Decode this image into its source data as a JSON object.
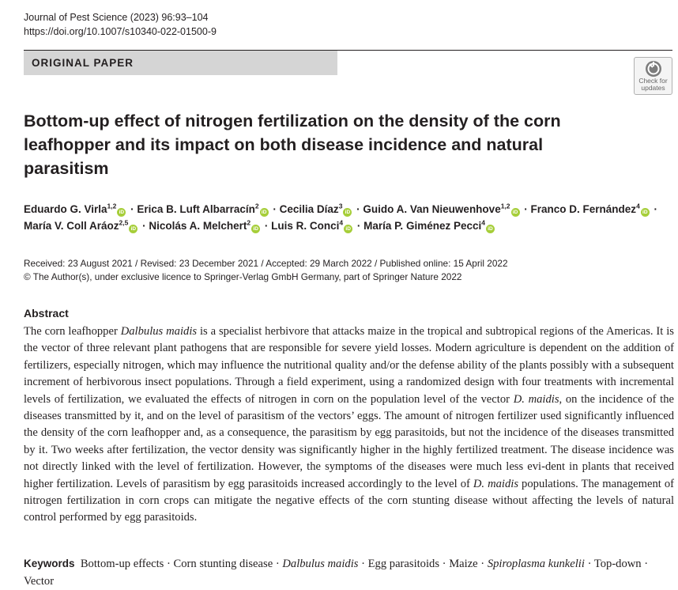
{
  "journal": {
    "citation": "Journal of Pest Science (2023) 96:93–104",
    "doi": "https://doi.org/10.1007/s10340-022-01500-9"
  },
  "banner": "ORIGINAL PAPER",
  "check_updates": {
    "line1": "Check for",
    "line2": "updates"
  },
  "title": "Bottom-up effect of nitrogen fertilization on the density of the corn leafhopper and its impact on both disease incidence and natural parasitism",
  "authors": [
    {
      "name": "Eduardo G. Virla",
      "aff": "1,2"
    },
    {
      "name": "Erica B. Luft Albarracín",
      "aff": "2"
    },
    {
      "name": "Cecilia Díaz",
      "aff": "3"
    },
    {
      "name": "Guido A. Van Nieuwenhove",
      "aff": "1,2"
    },
    {
      "name": "Franco D. Fernández",
      "aff": "4"
    },
    {
      "name": "María V. Coll Aráoz",
      "aff": "2,5"
    },
    {
      "name": "Nicolás A. Melchert",
      "aff": "2"
    },
    {
      "name": "Luis R. Conci",
      "aff": "4"
    },
    {
      "name": "María P. Giménez Pecci",
      "aff": "4"
    }
  ],
  "author_separator": "·",
  "dates": {
    "history": "Received: 23 August 2021 / Revised: 23 December 2021 / Accepted: 29 March 2022 / Published online: 15 April 2022",
    "copyright": "© The Author(s), under exclusive licence to Springer-Verlag GmbH Germany, part of Springer Nature 2022"
  },
  "abstract": {
    "heading": "Abstract",
    "p1": "The corn leafhopper ",
    "sp1": "Dalbulus maidis",
    "p2": " is a specialist herbivore that attacks maize in the tropical and subtropical regions of the Americas. It is the vector of three relevant plant pathogens that are responsible for severe yield losses. Modern agriculture is dependent on the addition of fertilizers, especially nitrogen, which may influence the nutritional quality and/or the defense ability of the plants possibly with a subsequent increment of herbivorous insect populations. Through a field experiment, using a randomized design with four treatments with incremental levels of fertilization, we evaluated the effects of nitrogen in corn on the population level of the vector ",
    "sp2": "D. maidis",
    "p3": ", on the incidence of the diseases transmitted by it, and on the level of parasitism of the vectors’ eggs. The amount of nitrogen fertilizer used significantly influenced the density of the corn leafhopper and, as a consequence, the parasitism by egg parasitoids, but not the incidence of the diseases transmitted by it. Two weeks after fertilization, the vector density was significantly higher in the highly fertilized treatment. The disease incidence was not directly linked with the level of fertilization. However, the symptoms of the diseases were much less evi-dent in plants that received higher fertilization. Levels of parasitism by egg parasitoids increased accordingly to the level of ",
    "sp3": "D. maidis",
    "p4": " populations. The management of nitrogen fertilization in corn crops can mitigate the negative effects of the corn stunting disease without affecting the levels of natural control performed by egg parasitoids."
  },
  "keywords": {
    "label": "Keywords",
    "items": [
      {
        "text": "Bottom-up effects",
        "italic": false
      },
      {
        "text": "Corn stunting disease",
        "italic": false
      },
      {
        "text": "Dalbulus maidis",
        "italic": true
      },
      {
        "text": "Egg parasitoids",
        "italic": false
      },
      {
        "text": "Maize",
        "italic": false
      },
      {
        "text": "Spiroplasma kunkelii",
        "italic": true
      },
      {
        "text": "Top-down",
        "italic": false
      },
      {
        "text": "Vector",
        "italic": false
      }
    ],
    "separator": "·"
  },
  "colors": {
    "orcid": "#a6ce39",
    "banner_bg": "#d5d5d5",
    "text": "#231f20"
  },
  "icons": {
    "orcid": "orcid-icon",
    "check_updates": "check-for-updates-icon"
  }
}
